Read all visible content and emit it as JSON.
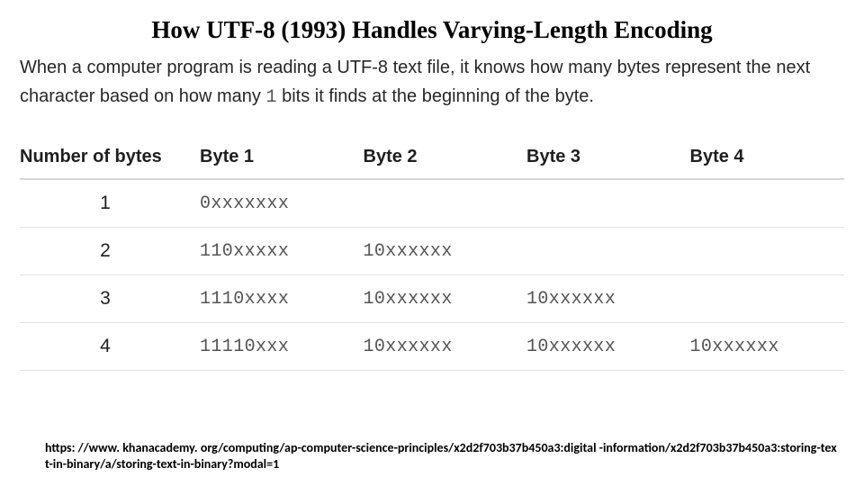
{
  "title": "How UTF-8 (1993)  Handles Varying-Length Encoding",
  "lead": {
    "pre": "When a computer program is reading a UTF-8 text file, it knows how many bytes represent the next character based on how many ",
    "code": "1",
    "post": " bits it finds at the beginning of the byte."
  },
  "table": {
    "columns": [
      "Number of bytes",
      "Byte 1",
      "Byte 2",
      "Byte 3",
      "Byte 4"
    ],
    "rows": [
      {
        "n": "1",
        "cells": [
          "0xxxxxxx",
          "",
          "",
          ""
        ]
      },
      {
        "n": "2",
        "cells": [
          "110xxxxx",
          "10xxxxxx",
          "",
          ""
        ]
      },
      {
        "n": "3",
        "cells": [
          "1110xxxx",
          "10xxxxxx",
          "10xxxxxx",
          ""
        ]
      },
      {
        "n": "4",
        "cells": [
          "11110xxx",
          "10xxxxxx",
          "10xxxxxx",
          "10xxxxxx"
        ]
      }
    ],
    "header_border_color": "#d6d6d6",
    "row_border_color": "#e3e3e3",
    "mono_color": "#555555"
  },
  "footer_url": "https: //www. khanacademy. org/computing/ap-computer-science-principles/x2d2f703b37b450a3:digital -information/x2d2f703b37b450a3:storing-text-in-binary/a/storing-text-in-binary?modal=1",
  "colors": {
    "background": "#ffffff",
    "text": "#1f1f1f",
    "mono": "#555555"
  }
}
